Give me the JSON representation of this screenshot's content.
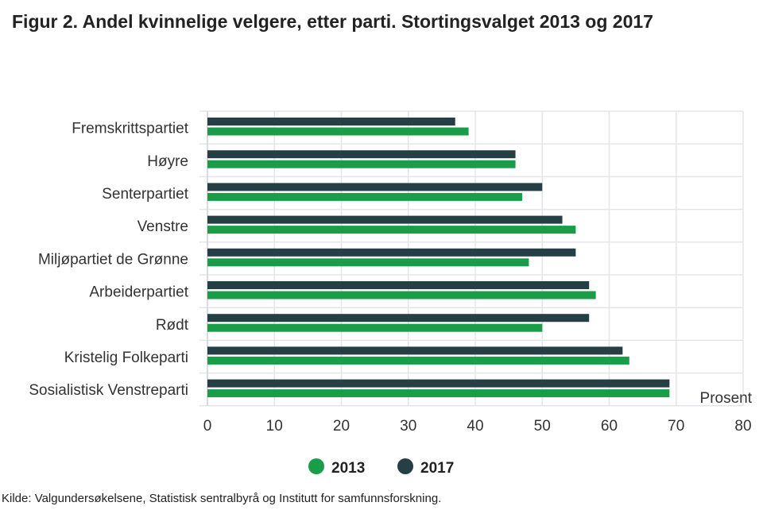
{
  "title": "Figur 2. Andel kvinnelige velgere, etter parti. Stortingsvalget 2013 og 2017",
  "source": "Kilde: Valgundersøkelsene, Statistisk sentralbyrå og Institutt for samfunnsforskning.",
  "chart_data": {
    "type": "bar",
    "orientation": "horizontal",
    "title": "Figur 2. Andel kvinnelige velgere, etter parti. Stortingsvalget 2013 og 2017",
    "xlabel": "Prosent",
    "xlim": [
      0,
      80
    ],
    "xticks": [
      0,
      10,
      20,
      30,
      40,
      50,
      60,
      70,
      80
    ],
    "grid": true,
    "legend_position": "bottom",
    "categories": [
      "Fremskrittspartiet",
      "Høyre",
      "Senterpartiet",
      "Venstre",
      "Miljøpartiet de Grønne",
      "Arbeiderpartiet",
      "Rødt",
      "Kristelig Folkeparti",
      "Sosialistisk Venstreparti"
    ],
    "series": [
      {
        "name": "2017",
        "color": "#263f44",
        "values": [
          37,
          46,
          50,
          53,
          55,
          57,
          57,
          62,
          69
        ]
      },
      {
        "name": "2013",
        "color": "#1a9d49",
        "values": [
          39,
          46,
          47,
          55,
          48,
          58,
          50,
          63,
          69
        ]
      }
    ],
    "legend_order": [
      "2013",
      "2017"
    ]
  }
}
